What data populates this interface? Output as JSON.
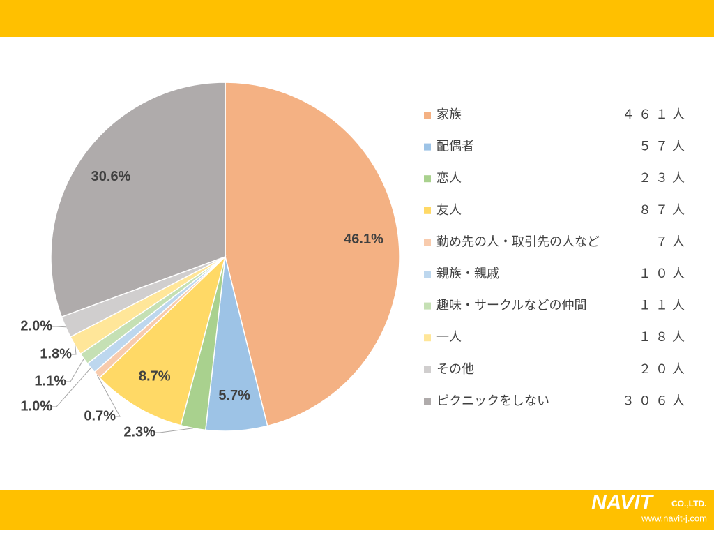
{
  "chart_data": {
    "type": "pie",
    "categories": [
      "家族",
      "配偶者",
      "恋人",
      "友人",
      "勤め先の人・取引先の人など",
      "親族・親戚",
      "趣味・サークルなどの仲間",
      "一人",
      "その他",
      "ピクニックをしない"
    ],
    "values": [
      46.1,
      5.7,
      2.3,
      8.7,
      0.7,
      1.0,
      1.1,
      1.8,
      2.0,
      30.6
    ],
    "value_labels": [
      "46.1%",
      "5.7%",
      "2.3%",
      "8.7%",
      "0.7%",
      "1.0%",
      "1.1%",
      "1.8%",
      "2.0%",
      "30.6%"
    ],
    "colors": [
      "#F4B183",
      "#9DC3E6",
      "#A9D18E",
      "#FFD966",
      "#F8CBAD",
      "#BDD7EE",
      "#C5E0B4",
      "#FFE699",
      "#D0CECE",
      "#AFABAB"
    ],
    "counts": [
      461,
      57,
      23,
      87,
      7,
      10,
      11,
      18,
      20,
      306
    ],
    "count_labels": [
      "４６１人",
      "５７人",
      "２３人",
      "８７人",
      "７人",
      "１０人",
      "１１人",
      "１８人",
      "２０人",
      "３０６人"
    ],
    "legend": "right"
  },
  "footer": {
    "logo": "NAVIT",
    "company": "CO.,LTD.",
    "url": "www.navit-j.com"
  }
}
